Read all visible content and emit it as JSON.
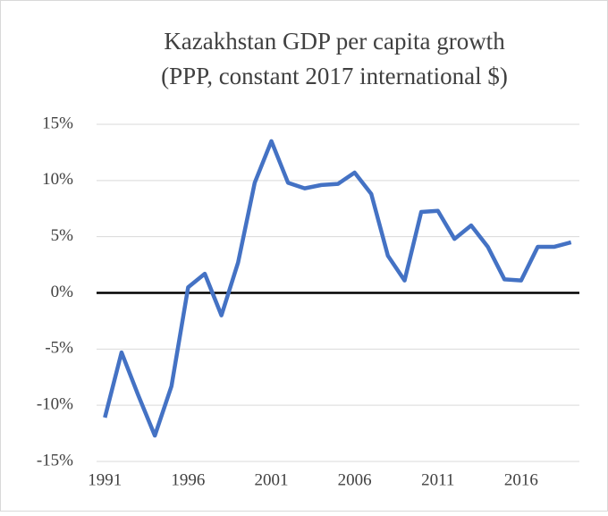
{
  "chart_data": {
    "type": "line",
    "title": [
      "Kazakhstan GDP per capita growth",
      "(PPP, constant 2017 international $)"
    ],
    "x": [
      1991,
      1992,
      1993,
      1994,
      1995,
      1996,
      1997,
      1998,
      1999,
      2000,
      2001,
      2002,
      2003,
      2004,
      2005,
      2006,
      2007,
      2008,
      2009,
      2010,
      2011,
      2012,
      2013,
      2014,
      2015,
      2016,
      2017,
      2018,
      2019
    ],
    "series": [
      {
        "name": "GDP per capita growth",
        "color": "#4472c4",
        "values": [
          -11.1,
          -5.3,
          -9.1,
          -12.7,
          -8.3,
          0.5,
          1.7,
          -2.0,
          2.7,
          9.8,
          13.5,
          9.8,
          9.3,
          9.6,
          9.7,
          10.7,
          8.8,
          3.3,
          1.1,
          7.2,
          7.3,
          4.8,
          6.0,
          4.1,
          1.2,
          1.1,
          4.1,
          4.1,
          4.5
        ]
      }
    ],
    "xlim": [
      1990.5,
      2019.5
    ],
    "xticks": [
      1991,
      1996,
      2001,
      2006,
      2011,
      2016
    ],
    "ylim": [
      -15,
      15
    ],
    "yticks": [
      {
        "value": -15,
        "label": "-15%"
      },
      {
        "value": -10,
        "label": "-10%"
      },
      {
        "value": -5,
        "label": "-5%"
      },
      {
        "value": 0,
        "label": "0%"
      },
      {
        "value": 5,
        "label": "5%"
      },
      {
        "value": 10,
        "label": "10%"
      },
      {
        "value": 15,
        "label": "15%"
      }
    ],
    "grid": true
  }
}
